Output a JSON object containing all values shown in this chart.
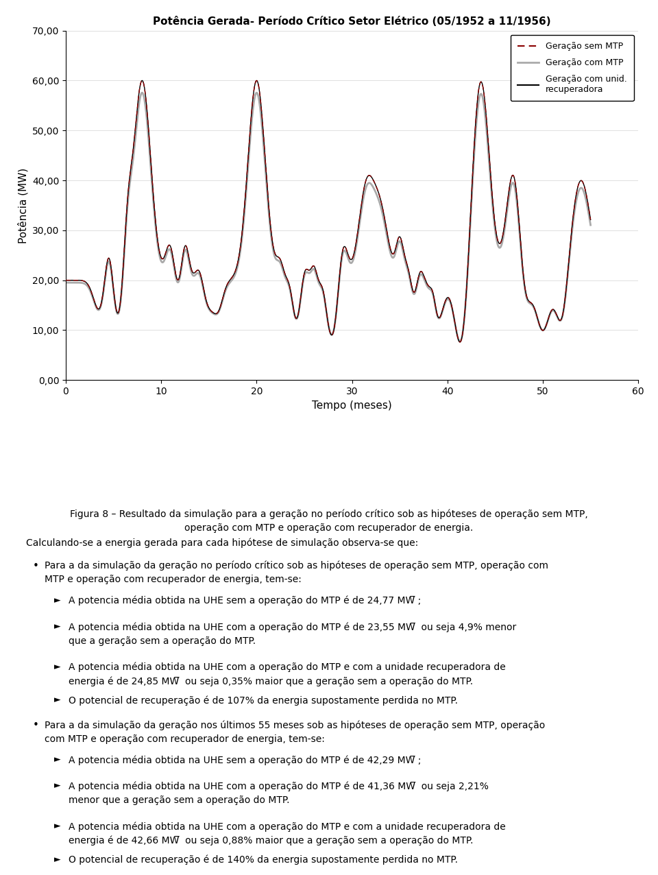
{
  "title": "Potência Gerada- Período Crítico Setor Elétrico (05/1952 a 11/1956)",
  "xlabel": "Tempo (meses)",
  "ylabel": "Potência (MW)",
  "xlim": [
    0,
    60
  ],
  "ylim": [
    0,
    70
  ],
  "ytick_labels": [
    "0,00",
    "10,00",
    "20,00",
    "30,00",
    "40,00",
    "50,00",
    "60,00",
    "70,00"
  ],
  "ytick_vals": [
    0,
    10,
    20,
    30,
    40,
    50,
    60,
    70
  ],
  "xticks": [
    0,
    10,
    20,
    30,
    40,
    50,
    60
  ],
  "legend_label1": "Geração sem MTP",
  "legend_label2": "Geração com MTP",
  "legend_label3": "Geração com unid.\nrecuperadora",
  "line1_color": "#8B0000",
  "line2_color": "#aaaaaa",
  "line3_color": "#000000",
  "fig_caption_line1": "Figura 8 – Resultado da simulação para a geração no período crítico sob as hipóteses de operação sem MTP,",
  "fig_caption_line2": "operação com MTP e operação com recuperador de energia.",
  "intro_text": "Calculando-se a energia gerada para cada hipótese de simulação observa-se que:",
  "bullet1": "Para a da simulação da geração no período crítico sob as hipóteses de operação sem MTP, operação com",
  "bullet1b": "MTP e operação com recuperador de energia, tem-se:",
  "sub1a": "A potencia média obtida na UHE sem a operação do MTP é de 24,77 MW̅ ;",
  "sub1b1": "A potencia média obtida na UHE com a operação do MTP é de 23,55 MW̅  ou seja 4,9% menor",
  "sub1b2": "que a geração sem a operação do MTP.",
  "sub1c1": "A potencia média obtida na UHE com a operação do MTP e com a unidade recuperadora de",
  "sub1c2": "energia é de 24,85 MW̅  ou seja 0,35% maior que a geração sem a operação do MTP.",
  "sub1d": "O potencial de recuperação é de 107% da energia supostamente perdida no MTP.",
  "bullet2": "Para a da simulação da geração nos últimos 55 meses sob as hipóteses de operação sem MTP, operação",
  "bullet2b": "com MTP e operação com recuperador de energia, tem-se:",
  "sub2a": "A potencia média obtida na UHE sem a operação do MTP é de 42,29 MW̅ ;",
  "sub2b1": "A potencia média obtida na UHE com a operação do MTP é de 41,36 MW̅  ou seja 2,21%",
  "sub2b2": "menor que a geração sem a operação do MTP.",
  "sub2c1": "A potencia média obtida na UHE com a operação do MTP e com a unidade recuperadora de",
  "sub2c2": "energia é de 42,66 MW̅  ou seja 0,88% maior que a geração sem a operação do MTP.",
  "sub2d": "O potencial de recuperação é de 140% da energia supostamente perdida no MTP."
}
